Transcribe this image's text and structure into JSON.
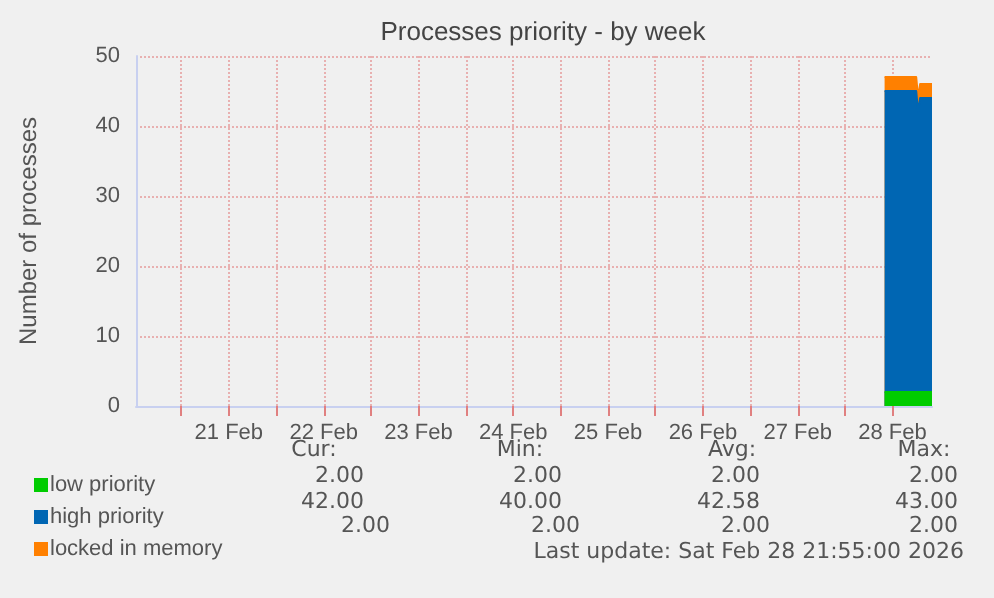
{
  "chart_data": {
    "type": "area",
    "title": "Processes priority - by week",
    "ylabel": "Number of processes",
    "stacked": true,
    "grid": true,
    "legend": "bottom left",
    "x": [
      "2026-02-28T10:00",
      "2026-02-28T11:00",
      "2026-02-28T12:00",
      "2026-02-28T13:00",
      "2026-02-28T14:00",
      "2026-02-28T15:00",
      "2026-02-28T16:00",
      "2026-02-28T18:00",
      "2026-02-28T18:30",
      "2026-02-28T19:00",
      "2026-02-28T20:00",
      "2026-02-28T21:00",
      "2026-02-28T22:00"
    ],
    "series": [
      {
        "name": "low priority",
        "color": "#00cc00",
        "values": [
          2,
          2,
          2,
          2,
          2,
          2,
          2,
          2,
          2,
          2,
          2,
          2,
          2
        ]
      },
      {
        "name": "high priority",
        "color": "#0066b3",
        "values": [
          43,
          43,
          43,
          43,
          43,
          43,
          43,
          43,
          40,
          42,
          42,
          42,
          42
        ]
      },
      {
        "name": "locked in memory",
        "color": "#ff8000",
        "values": [
          2,
          2,
          2,
          2,
          2,
          2,
          2,
          2,
          2,
          2,
          2,
          2,
          2
        ]
      }
    ],
    "xlim": [
      "2026-02-20T12:30",
      "2026-02-28T22:00"
    ],
    "xticks": [
      {
        "value": "2026-02-21T00:00",
        "label": null
      },
      {
        "value": "2026-02-21T12:00",
        "label": "21 Feb"
      },
      {
        "value": "2026-02-22T00:00",
        "label": null
      },
      {
        "value": "2026-02-22T12:00",
        "label": "22 Feb"
      },
      {
        "value": "2026-02-23T00:00",
        "label": null
      },
      {
        "value": "2026-02-23T12:00",
        "label": "23 Feb"
      },
      {
        "value": "2026-02-24T00:00",
        "label": null
      },
      {
        "value": "2026-02-24T12:00",
        "label": "24 Feb"
      },
      {
        "value": "2026-02-25T00:00",
        "label": null
      },
      {
        "value": "2026-02-25T12:00",
        "label": "25 Feb"
      },
      {
        "value": "2026-02-26T00:00",
        "label": null
      },
      {
        "value": "2026-02-26T12:00",
        "label": "26 Feb"
      },
      {
        "value": "2026-02-27T00:00",
        "label": null
      },
      {
        "value": "2026-02-27T12:00",
        "label": "27 Feb"
      },
      {
        "value": "2026-02-28T00:00",
        "label": null
      },
      {
        "value": "2026-02-28T12:00",
        "label": "28 Feb"
      }
    ],
    "ylim": [
      0,
      50
    ],
    "yticks": [
      0,
      10,
      20,
      30,
      40,
      50
    ],
    "annotations": [
      "Cur:",
      "Min:",
      "Avg:",
      "Max:",
      "2.00",
      "2.00",
      "2.00",
      "2.00",
      "42.00",
      "40.00",
      "42.58",
      "43.00",
      "2.00",
      "2.00",
      "2.00",
      "2.00",
      "Last update: Sat Feb 28 21:55:00 2026"
    ]
  }
}
